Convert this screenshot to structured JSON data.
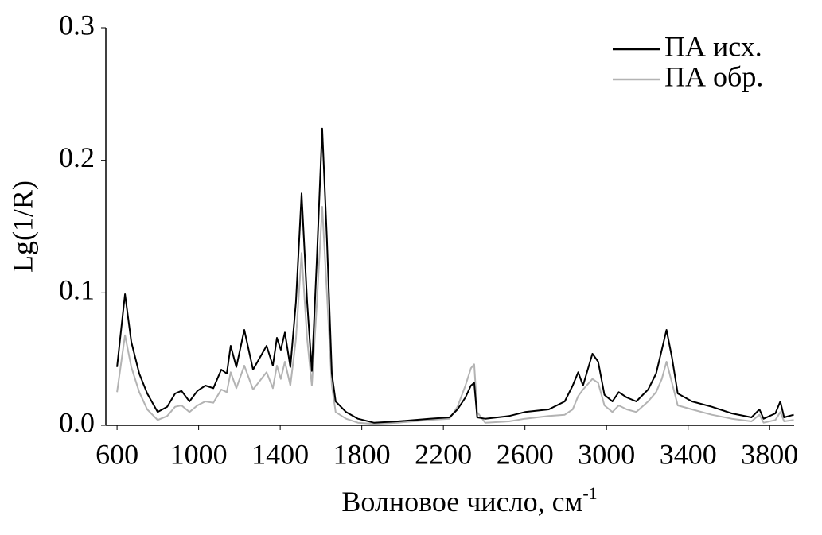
{
  "chart_data": {
    "type": "line",
    "y_label": "Lg(1/R)",
    "x_label": {
      "text": "Волновое число, см",
      "superscript": "-1"
    },
    "xlim": [
      545,
      3920
    ],
    "ylim": [
      0,
      0.3
    ],
    "xticks": [
      600,
      1000,
      1400,
      1800,
      2200,
      2600,
      3000,
      3400,
      3800
    ],
    "yticks": [
      {
        "value": 0,
        "label": "0.0"
      },
      0.1,
      0.2,
      0.3
    ],
    "legend": "top-right",
    "x": [
      600,
      639,
      670,
      709,
      748,
      799,
      846,
      885,
      916,
      955,
      994,
      1033,
      1072,
      1111,
      1138,
      1157,
      1185,
      1224,
      1267,
      1333,
      1364,
      1384,
      1403,
      1423,
      1450,
      1477,
      1505,
      1532,
      1555,
      1579,
      1606,
      1629,
      1653,
      1672,
      1723,
      1781,
      1859,
      1976,
      2132,
      2230,
      2269,
      2308,
      2335,
      2351,
      2366,
      2405,
      2522,
      2600,
      2717,
      2795,
      2834,
      2861,
      2885,
      2931,
      2959,
      2990,
      3029,
      3060,
      3099,
      3146,
      3204,
      3243,
      3271,
      3294,
      3321,
      3349,
      3419,
      3516,
      3614,
      3711,
      3750,
      3770,
      3828,
      3852,
      3871,
      3918
    ],
    "series": [
      {
        "name": "ПА исх.",
        "color": "#000000",
        "values": [
          0.044,
          0.099,
          0.063,
          0.039,
          0.024,
          0.01,
          0.014,
          0.024,
          0.026,
          0.018,
          0.026,
          0.03,
          0.028,
          0.042,
          0.039,
          0.06,
          0.044,
          0.072,
          0.042,
          0.06,
          0.045,
          0.066,
          0.057,
          0.07,
          0.044,
          0.093,
          0.175,
          0.093,
          0.041,
          0.123,
          0.224,
          0.141,
          0.039,
          0.018,
          0.01,
          0.005,
          0.002,
          0.003,
          0.005,
          0.006,
          0.012,
          0.021,
          0.03,
          0.032,
          0.006,
          0.005,
          0.007,
          0.01,
          0.012,
          0.018,
          0.03,
          0.04,
          0.03,
          0.054,
          0.048,
          0.023,
          0.018,
          0.025,
          0.021,
          0.018,
          0.027,
          0.039,
          0.057,
          0.072,
          0.051,
          0.024,
          0.018,
          0.014,
          0.009,
          0.006,
          0.012,
          0.005,
          0.009,
          0.018,
          0.006,
          0.008
        ]
      },
      {
        "name": "ПА обр.",
        "color": "#b3b3b3",
        "values": [
          0.025,
          0.068,
          0.044,
          0.025,
          0.012,
          0.004,
          0.007,
          0.014,
          0.015,
          0.01,
          0.015,
          0.018,
          0.017,
          0.027,
          0.025,
          0.04,
          0.028,
          0.045,
          0.027,
          0.04,
          0.028,
          0.045,
          0.035,
          0.048,
          0.03,
          0.065,
          0.13,
          0.065,
          0.03,
          0.09,
          0.165,
          0.1,
          0.03,
          0.01,
          0.005,
          0.002,
          0.001,
          0.002,
          0.004,
          0.005,
          0.014,
          0.03,
          0.043,
          0.046,
          0.01,
          0.002,
          0.003,
          0.005,
          0.007,
          0.008,
          0.012,
          0.022,
          0.027,
          0.035,
          0.032,
          0.015,
          0.01,
          0.015,
          0.012,
          0.01,
          0.018,
          0.025,
          0.035,
          0.048,
          0.032,
          0.015,
          0.012,
          0.008,
          0.005,
          0.003,
          0.008,
          0.002,
          0.004,
          0.01,
          0.003,
          0.004
        ]
      }
    ]
  }
}
